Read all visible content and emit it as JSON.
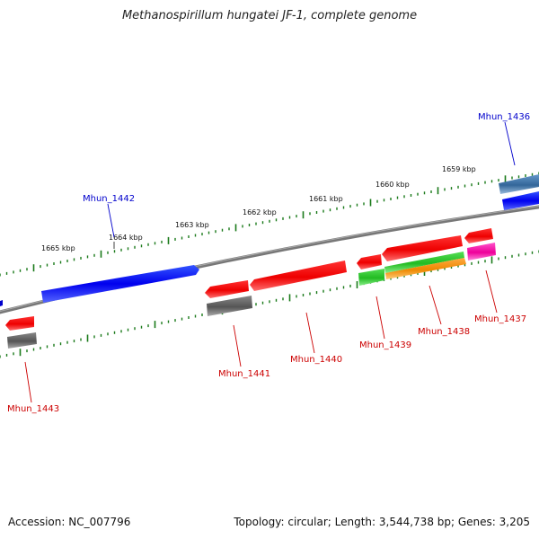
{
  "title": "Methanospirillum hungatei JF-1, complete genome",
  "footer": {
    "accession": "Accession: NC_007796",
    "summary": "Topology: circular; Length: 3,544,738 bp; Genes: 3,205"
  },
  "scale": [
    {
      "label": "1665 kbp"
    },
    {
      "label": "1664 kbp"
    },
    {
      "label": "1663 kbp"
    },
    {
      "label": "1662 kbp"
    },
    {
      "label": "1661 kbp"
    },
    {
      "label": "1660 kbp"
    },
    {
      "label": "1659 kbp"
    }
  ],
  "genes": [
    {
      "id": "Mhun_1436",
      "color": "#0000cc"
    },
    {
      "id": "Mhun_1437",
      "color": "#cc0000"
    },
    {
      "id": "Mhun_1438",
      "color": "#cc0000"
    },
    {
      "id": "Mhun_1439",
      "color": "#cc0000"
    },
    {
      "id": "Mhun_1440",
      "color": "#cc0000"
    },
    {
      "id": "Mhun_1441",
      "color": "#cc0000"
    },
    {
      "id": "Mhun_1442",
      "color": "#0000cc"
    },
    {
      "id": "Mhun_1443",
      "color": "#cc0000"
    }
  ]
}
